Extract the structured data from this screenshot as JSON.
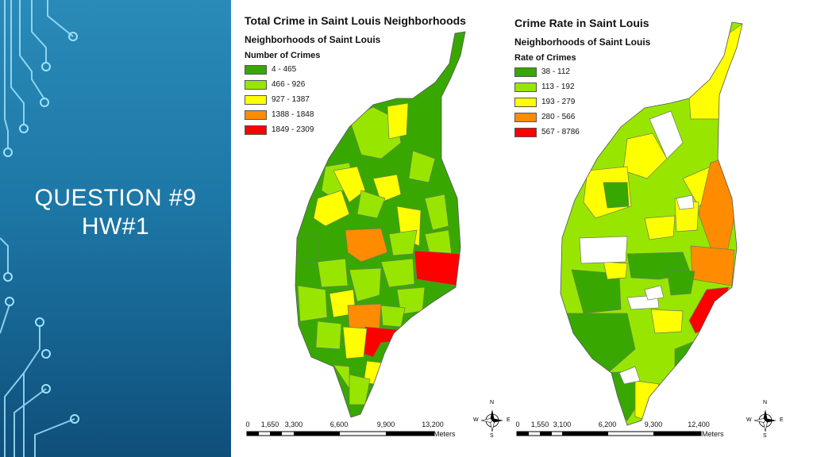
{
  "slide": {
    "title_line1": "QUESTION #9",
    "title_line2": "HW#1",
    "accent_colors": {
      "panel_top": "#2a8ab8",
      "panel_bottom": "#0f4f7a",
      "circuit": "#9fe3ff"
    }
  },
  "maps": [
    {
      "title": "Total Crime in Saint Louis Neighborhoods",
      "subtitle": "Neighborhoods of Saint Louis",
      "legend_heading": "Number of Crimes",
      "legend": [
        {
          "label": "4 - 465",
          "color": "#38a800"
        },
        {
          "label": "466 - 926",
          "color": "#98e600"
        },
        {
          "label": "927 - 1387",
          "color": "#ffff00"
        },
        {
          "label": "1388 - 1848",
          "color": "#ff8c00"
        },
        {
          "label": "1849 - 2309",
          "color": "#ff0000"
        }
      ],
      "scale_ticks": [
        "0",
        "1,650",
        "3,300",
        "6,600",
        "9,900",
        "13,200"
      ],
      "scale_unit": "Meters",
      "compass": {
        "n": "N",
        "s": "S",
        "e": "E",
        "w": "W"
      }
    },
    {
      "title": "Crime Rate in Saint Louis",
      "subtitle": "Neighborhoods of Saint Louis",
      "legend_heading": "Rate of Crimes",
      "legend": [
        {
          "label": "38 - 112",
          "color": "#38a800"
        },
        {
          "label": "113 - 192",
          "color": "#98e600"
        },
        {
          "label": "193 - 279",
          "color": "#ffff00"
        },
        {
          "label": "280 - 566",
          "color": "#ff8c00"
        },
        {
          "label": "567 - 8786",
          "color": "#ff0000"
        }
      ],
      "scale_ticks": [
        "0",
        "1,550",
        "3,100",
        "6,200",
        "9,300",
        "12,400"
      ],
      "scale_unit": "Meters",
      "compass": {
        "n": "N",
        "s": "S",
        "e": "E",
        "w": "W"
      }
    }
  ]
}
